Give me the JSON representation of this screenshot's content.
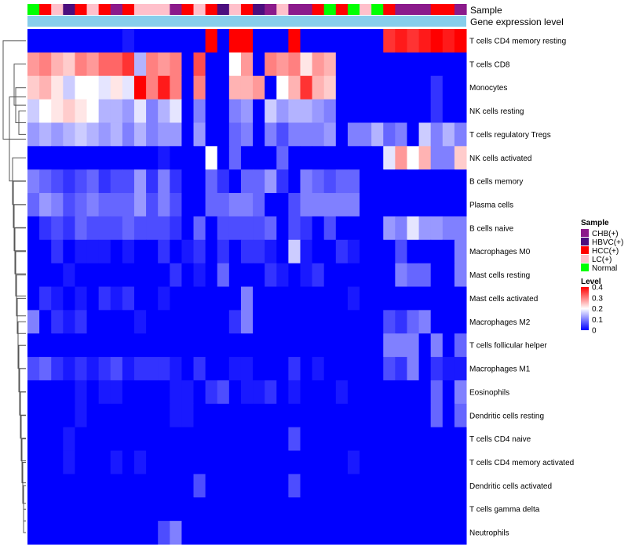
{
  "chart_data": {
    "type": "heatmap",
    "title": "",
    "annotation_labels": [
      "Sample",
      "Gene expression level"
    ],
    "sample_groups": [
      "CHB(+)",
      "HBVC(+)",
      "HCC(+)",
      "LC(+)",
      "Normal"
    ],
    "sample_colors": {
      "CHB(+)": "#8B1A8B",
      "HBVC(+)": "#4B0E7E",
      "HCC(+)": "#FF0000",
      "LC(+)": "#FFC0CB",
      "Normal": "#00FF00"
    },
    "expression_bar_color": "#87CEEB",
    "columns": [
      "Normal",
      "HCC(+)",
      "LC(+)",
      "HBVC(+)",
      "HCC(+)",
      "LC(+)",
      "HCC(+)",
      "CHB(+)",
      "HCC(+)",
      "LC(+)",
      "LC(+)",
      "LC(+)",
      "CHB(+)",
      "HCC(+)",
      "LC(+)",
      "HCC(+)",
      "HBVC(+)",
      "LC(+)",
      "HCC(+)",
      "HBVC(+)",
      "CHB(+)",
      "LC(+)",
      "CHB(+)",
      "CHB(+)",
      "HCC(+)",
      "Normal",
      "HCC(+)",
      "Normal",
      "LC(+)",
      "Normal",
      "HCC(+)",
      "CHB(+)",
      "CHB(+)",
      "CHB(+)",
      "HCC(+)",
      "HCC(+)",
      "CHB(+)"
    ],
    "rows": [
      "T cells CD4 memory resting",
      "T cells CD8",
      "Monocytes",
      "NK cells resting",
      "T cells regulatory  Tregs",
      "NK cells activated",
      "B cells memory",
      "Plasma cells",
      "B cells naive",
      "Macrophages M0",
      "Mast cells resting",
      "Mast cells activated",
      "Macrophages M2",
      "T cells follicular helper",
      "Macrophages M1",
      "Eosinophils",
      "Dendritic cells resting",
      "T cells CD4 naive",
      "T cells CD4 memory activated",
      "Dendritic cells activated",
      "T cells gamma delta",
      "Neutrophils"
    ],
    "values": [
      [
        0,
        0,
        0,
        0,
        0,
        0,
        0,
        0,
        0.02,
        0,
        0,
        0,
        0,
        0,
        0,
        0.4,
        0,
        0.4,
        0.4,
        0,
        0,
        0,
        0.4,
        0,
        0,
        0,
        0,
        0,
        0,
        0,
        0.36,
        0.38,
        0.36,
        0.38,
        0.4,
        0.38,
        0.4
      ],
      [
        0.28,
        0.3,
        0.26,
        0.24,
        0.3,
        0.28,
        0.32,
        0.32,
        0.36,
        0.14,
        0.3,
        0.28,
        0.3,
        0,
        0.34,
        0,
        0,
        0.2,
        0.28,
        0,
        0.3,
        0.28,
        0.3,
        0.22,
        0.28,
        0.26,
        0,
        0,
        0,
        0,
        0,
        0,
        0,
        0,
        0,
        0,
        0
      ],
      [
        0.24,
        0.26,
        0.22,
        0.16,
        0.2,
        0.2,
        0.18,
        0.22,
        0.18,
        0.4,
        0.3,
        0.38,
        0.3,
        0,
        0.3,
        0,
        0,
        0.26,
        0.26,
        0.28,
        0,
        0.2,
        0.26,
        0.36,
        0.26,
        0.24,
        0,
        0,
        0,
        0,
        0,
        0,
        0,
        0,
        0.04,
        0,
        0
      ],
      [
        0.16,
        0.2,
        0.22,
        0.24,
        0.22,
        0.2,
        0.14,
        0.14,
        0.12,
        0.18,
        0.1,
        0.14,
        0.18,
        0,
        0.1,
        0,
        0,
        0.1,
        0.12,
        0,
        0.16,
        0.12,
        0.14,
        0.14,
        0.12,
        0.1,
        0,
        0,
        0,
        0,
        0,
        0,
        0,
        0,
        0.04,
        0,
        0
      ],
      [
        0.12,
        0.14,
        0.12,
        0.14,
        0.16,
        0.14,
        0.12,
        0.14,
        0.1,
        0.14,
        0.1,
        0.12,
        0.12,
        0,
        0.12,
        0,
        0,
        0.08,
        0.1,
        0,
        0.1,
        0.06,
        0.1,
        0.1,
        0.1,
        0.12,
        0,
        0.1,
        0.1,
        0.14,
        0.08,
        0.1,
        0,
        0.16,
        0.1,
        0.14,
        0.1
      ],
      [
        0,
        0,
        0,
        0,
        0,
        0,
        0,
        0,
        0,
        0,
        0,
        0.02,
        0,
        0,
        0,
        0.2,
        0,
        0.08,
        0,
        0,
        0,
        0.08,
        0,
        0,
        0,
        0,
        0,
        0,
        0,
        0,
        0.18,
        0.28,
        0.2,
        0.26,
        0.1,
        0.1,
        0.24
      ],
      [
        0.1,
        0.08,
        0.06,
        0.04,
        0.06,
        0.08,
        0.04,
        0.06,
        0.06,
        0.12,
        0.04,
        0.1,
        0.04,
        0,
        0,
        0.08,
        0.04,
        0,
        0.08,
        0.08,
        0.12,
        0.04,
        0,
        0.1,
        0.08,
        0.06,
        0.08,
        0.08,
        0,
        0,
        0,
        0,
        0,
        0,
        0,
        0,
        0
      ],
      [
        0.08,
        0.12,
        0.1,
        0.06,
        0.08,
        0.1,
        0.08,
        0.08,
        0.08,
        0.12,
        0.06,
        0.1,
        0.06,
        0,
        0,
        0.08,
        0.08,
        0.1,
        0.1,
        0.08,
        0,
        0,
        0.06,
        0.1,
        0.1,
        0.1,
        0.1,
        0.1,
        0,
        0,
        0,
        0,
        0,
        0,
        0,
        0,
        0
      ],
      [
        0,
        0.04,
        0.06,
        0.04,
        0.08,
        0.06,
        0.06,
        0.06,
        0.08,
        0.06,
        0.06,
        0.06,
        0.04,
        0,
        0.08,
        0,
        0.06,
        0.06,
        0.06,
        0.06,
        0.08,
        0,
        0.06,
        0.04,
        0,
        0.06,
        0,
        0,
        0,
        0,
        0.12,
        0.1,
        0.18,
        0.12,
        0.12,
        0.1,
        0.1
      ],
      [
        0,
        0,
        0.04,
        0,
        0.02,
        0.02,
        0.02,
        0,
        0.02,
        0,
        0,
        0.04,
        0,
        0.02,
        0.04,
        0,
        0.04,
        0,
        0.04,
        0.04,
        0.02,
        0,
        0.16,
        0.02,
        0,
        0,
        0.04,
        0.02,
        0,
        0,
        0,
        0.06,
        0,
        0,
        0,
        0,
        0.1
      ],
      [
        0,
        0,
        0,
        0.02,
        0,
        0,
        0,
        0,
        0,
        0,
        0,
        0,
        0.04,
        0,
        0.02,
        0,
        0.08,
        0,
        0,
        0,
        0.04,
        0.02,
        0,
        0.02,
        0.04,
        0,
        0,
        0,
        0,
        0,
        0,
        0.1,
        0.08,
        0.08,
        0,
        0,
        0.1
      ],
      [
        0,
        0.04,
        0.02,
        0,
        0.02,
        0,
        0.04,
        0.02,
        0.04,
        0,
        0,
        0.02,
        0,
        0,
        0,
        0,
        0,
        0,
        0.1,
        0,
        0,
        0,
        0,
        0,
        0,
        0,
        0,
        0.02,
        0,
        0,
        0,
        0,
        0,
        0,
        0,
        0,
        0
      ],
      [
        0.1,
        0,
        0.04,
        0.02,
        0.04,
        0,
        0,
        0,
        0,
        0.02,
        0,
        0,
        0,
        0,
        0,
        0,
        0,
        0.04,
        0.1,
        0,
        0,
        0,
        0,
        0,
        0,
        0,
        0,
        0,
        0,
        0,
        0.06,
        0.04,
        0.08,
        0.1,
        0,
        0,
        0
      ],
      [
        0,
        0,
        0,
        0,
        0,
        0,
        0,
        0,
        0,
        0,
        0,
        0,
        0,
        0,
        0,
        0,
        0,
        0,
        0,
        0,
        0,
        0,
        0,
        0,
        0,
        0,
        0,
        0,
        0,
        0,
        0.1,
        0.1,
        0.1,
        0,
        0.1,
        0,
        0.08
      ],
      [
        0.06,
        0.08,
        0.04,
        0.02,
        0.04,
        0.02,
        0.04,
        0.06,
        0.02,
        0.04,
        0.04,
        0.04,
        0.02,
        0,
        0.04,
        0,
        0,
        0.02,
        0.02,
        0,
        0,
        0,
        0.04,
        0,
        0.02,
        0,
        0,
        0,
        0,
        0,
        0.06,
        0.04,
        0.1,
        0,
        0.04,
        0.02,
        0.02
      ],
      [
        0,
        0,
        0,
        0,
        0.02,
        0,
        0.02,
        0.02,
        0,
        0,
        0,
        0,
        0.02,
        0.02,
        0,
        0.04,
        0.06,
        0,
        0.02,
        0.02,
        0.04,
        0,
        0.02,
        0,
        0,
        0,
        0.02,
        0,
        0,
        0,
        0,
        0,
        0,
        0,
        0.08,
        0,
        0.1
      ],
      [
        0,
        0,
        0,
        0,
        0.02,
        0,
        0,
        0,
        0,
        0,
        0,
        0,
        0.02,
        0.02,
        0,
        0,
        0,
        0,
        0,
        0,
        0,
        0,
        0,
        0,
        0,
        0,
        0,
        0,
        0,
        0,
        0,
        0,
        0,
        0,
        0.08,
        0,
        0.08
      ],
      [
        0,
        0,
        0,
        0.02,
        0,
        0,
        0,
        0,
        0,
        0,
        0,
        0,
        0,
        0,
        0,
        0,
        0,
        0,
        0,
        0,
        0,
        0,
        0.06,
        0,
        0,
        0,
        0,
        0,
        0,
        0,
        0,
        0,
        0,
        0,
        0,
        0,
        0
      ],
      [
        0,
        0,
        0,
        0.02,
        0,
        0,
        0,
        0.02,
        0,
        0.02,
        0,
        0,
        0,
        0,
        0,
        0,
        0,
        0,
        0,
        0,
        0,
        0,
        0,
        0,
        0,
        0,
        0,
        0.02,
        0,
        0,
        0,
        0,
        0,
        0,
        0,
        0,
        0
      ],
      [
        0,
        0,
        0,
        0,
        0,
        0,
        0,
        0,
        0,
        0,
        0,
        0,
        0,
        0,
        0.06,
        0,
        0,
        0,
        0,
        0,
        0,
        0,
        0.06,
        0,
        0,
        0,
        0,
        0,
        0,
        0,
        0,
        0,
        0,
        0,
        0,
        0,
        0
      ],
      [
        0,
        0,
        0,
        0,
        0,
        0,
        0,
        0,
        0,
        0,
        0,
        0,
        0,
        0,
        0,
        0,
        0,
        0,
        0,
        0,
        0,
        0,
        0,
        0,
        0,
        0,
        0,
        0,
        0,
        0,
        0,
        0,
        0,
        0,
        0,
        0,
        0
      ],
      [
        0,
        0,
        0,
        0,
        0,
        0,
        0,
        0,
        0,
        0,
        0,
        0.06,
        0.1,
        0,
        0,
        0,
        0,
        0,
        0,
        0,
        0,
        0,
        0,
        0,
        0,
        0,
        0,
        0,
        0,
        0,
        0,
        0,
        0,
        0,
        0,
        0,
        0
      ]
    ],
    "color_scale": {
      "min": 0,
      "max": 0.4,
      "colors": [
        "#0000FF",
        "#FFFFFF",
        "#FF0000"
      ]
    },
    "legend": {
      "sample_title": "Sample",
      "level_title": "Level",
      "level_ticks": [
        "0.4",
        "0.3",
        "0.2",
        "0.1",
        "0"
      ],
      "level_tick_values": [
        0.4,
        0.3,
        0.2,
        0.1,
        0
      ],
      "placement": "right"
    },
    "dendrogram": "rows"
  }
}
